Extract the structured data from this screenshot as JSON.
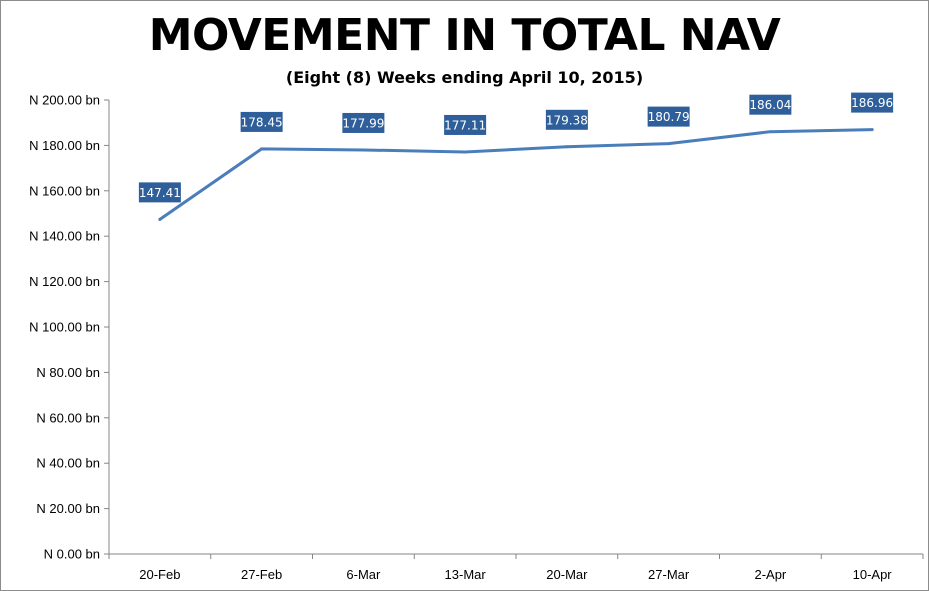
{
  "chart_data": {
    "type": "line",
    "title": "MOVEMENT IN TOTAL NAV",
    "subtitle": "(Eight (8) Weeks ending April 10, 2015)",
    "categories": [
      "20-Feb",
      "27-Feb",
      "6-Mar",
      "13-Mar",
      "20-Mar",
      "27-Mar",
      "2-Apr",
      "10-Apr"
    ],
    "series": [
      {
        "values": [
          147.41,
          178.45,
          177.99,
          177.11,
          179.38,
          180.79,
          186.04,
          186.96
        ],
        "data_labels": [
          "147.41",
          "178.45",
          "177.99",
          "177.11",
          "179.38",
          "180.79",
          "186.04",
          "186.96"
        ],
        "color": "#4a7ebb"
      }
    ],
    "y_ticks": [
      0,
      20,
      40,
      60,
      80,
      100,
      120,
      140,
      160,
      180,
      200
    ],
    "y_tick_labels": [
      "N 0.00 bn",
      "N 20.00 bn",
      "N 40.00 bn",
      "N 60.00 bn",
      "N 80.00 bn",
      "N 100.00 bn",
      "N 120.00 bn",
      "N 140.00 bn",
      "N 160.00 bn",
      "N 180.00 bn",
      "N 200.00 bn"
    ],
    "ylim": [
      0,
      200
    ],
    "grid": false,
    "legend": "none",
    "label_box_color": "#2e5f9a"
  }
}
